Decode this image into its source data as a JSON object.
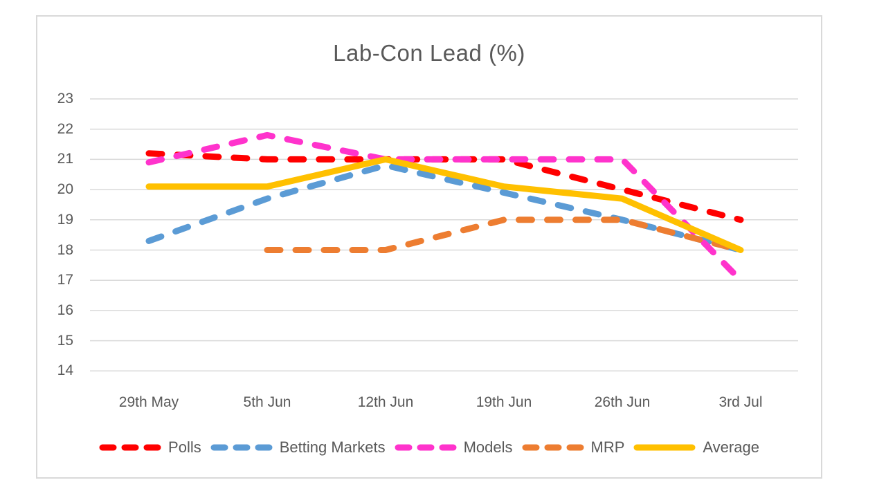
{
  "chart_data": {
    "type": "line",
    "title": "Lab-Con Lead (%)",
    "xlabel": "",
    "ylabel": "",
    "categories": [
      "29th May",
      "5th Jun",
      "12th Jun",
      "19th Jun",
      "26th Jun",
      "3rd Jul"
    ],
    "y_ticks": [
      23,
      22,
      21,
      20,
      19,
      18,
      17,
      16,
      15,
      14
    ],
    "ylim": [
      14,
      23
    ],
    "grid": true,
    "legend_position": "bottom",
    "series": [
      {
        "name": "Polls",
        "color": "#FF0000",
        "style": "dashed",
        "values": [
          21.2,
          21.0,
          21.0,
          21.0,
          20.0,
          19.0
        ]
      },
      {
        "name": "Betting Markets",
        "color": "#5B9BD5",
        "style": "dashed",
        "values": [
          18.3,
          19.7,
          20.8,
          19.9,
          19.0,
          18.0
        ]
      },
      {
        "name": "Models",
        "color": "#FF33CC",
        "style": "dashed",
        "values": [
          20.9,
          21.8,
          21.0,
          21.0,
          21.0,
          17.0
        ]
      },
      {
        "name": "MRP",
        "color": "#ED7D31",
        "style": "dashed",
        "values": [
          null,
          18.0,
          18.0,
          19.0,
          19.0,
          18.0
        ]
      },
      {
        "name": "Average",
        "color": "#FFC000",
        "style": "solid",
        "values": [
          20.1,
          20.1,
          21.0,
          20.1,
          19.7,
          18.0
        ]
      }
    ],
    "colors": {
      "axis_text": "#595959",
      "gridline": "#D9D9D9",
      "frame_border": "#D9D9D9",
      "background": "#FFFFFF"
    }
  }
}
